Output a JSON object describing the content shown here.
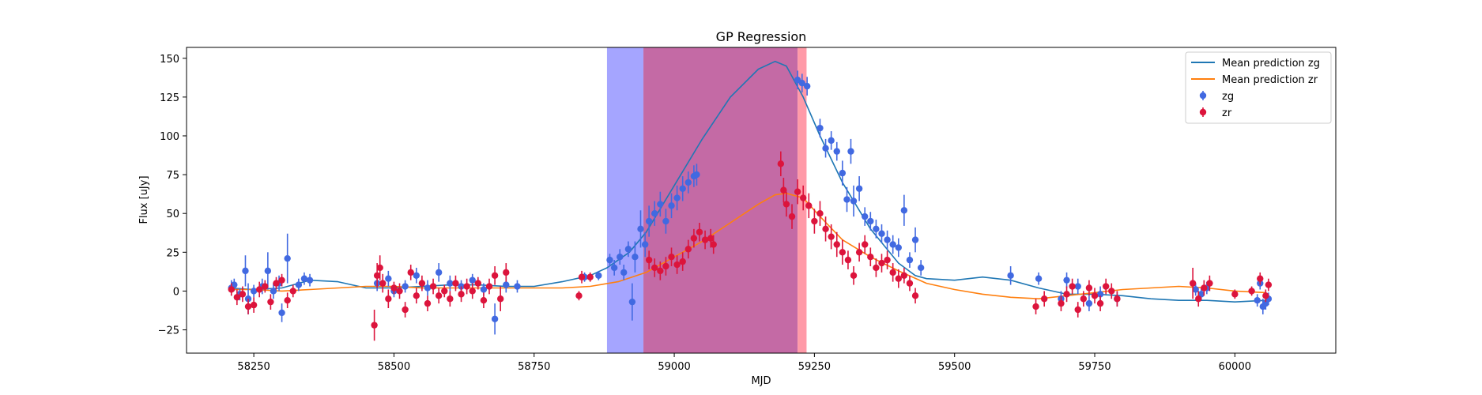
{
  "chart_data": {
    "type": "scatter",
    "title": "GP Regression",
    "xlabel": "MJD",
    "ylabel": "Flux [uJy]",
    "xlim": [
      58130,
      60180
    ],
    "ylim": [
      -40,
      157
    ],
    "xticks": [
      58250,
      58500,
      58750,
      59000,
      59250,
      59500,
      59750,
      60000
    ],
    "yticks": [
      -25,
      0,
      25,
      50,
      75,
      100,
      125,
      150
    ],
    "grid": false,
    "legend_position": "top-right",
    "shaded_regions": [
      {
        "x0": 58880,
        "x1": 58945,
        "color": "#a5a5ff",
        "label": ""
      },
      {
        "x0": 58945,
        "x1": 59220,
        "color": "#c46aa5",
        "label": ""
      },
      {
        "x0": 59220,
        "x1": 59236,
        "color": "#ff9aa8",
        "label": ""
      }
    ],
    "series": [
      {
        "name": "Mean prediction zg",
        "kind": "line",
        "color": "#1f77b4",
        "x": [
          58205,
          58250,
          58300,
          58350,
          58400,
          58450,
          58500,
          58550,
          58600,
          58650,
          58700,
          58750,
          58800,
          58850,
          58880,
          58920,
          58950,
          59000,
          59050,
          59100,
          59150,
          59180,
          59200,
          59230,
          59260,
          59300,
          59350,
          59400,
          59430,
          59450,
          59500,
          59550,
          59600,
          59650,
          59700,
          59750,
          59800,
          59850,
          59900,
          59950,
          60000,
          60055
        ],
        "y": [
          2,
          1,
          2,
          7,
          6,
          2,
          2,
          3,
          4,
          4,
          3,
          3,
          6,
          10,
          15,
          25,
          38,
          68,
          98,
          125,
          143,
          148,
          145,
          125,
          100,
          70,
          40,
          18,
          10,
          8,
          7,
          9,
          7,
          2,
          -2,
          -2,
          -3,
          -5,
          -6,
          -6,
          -7,
          -6
        ]
      },
      {
        "name": "Mean prediction zr",
        "kind": "line",
        "color": "#ff7f0e",
        "x": [
          58205,
          58250,
          58300,
          58350,
          58400,
          58450,
          58500,
          58550,
          58600,
          58650,
          58700,
          58750,
          58800,
          58850,
          58900,
          58950,
          59000,
          59050,
          59100,
          59150,
          59180,
          59200,
          59230,
          59260,
          59300,
          59350,
          59400,
          59450,
          59500,
          59550,
          59600,
          59650,
          59700,
          59750,
          59800,
          59850,
          59900,
          59950,
          60000,
          60055
        ],
        "y": [
          1,
          1,
          0,
          1,
          2,
          3,
          3,
          2,
          2,
          2,
          2,
          2,
          2,
          3,
          6,
          12,
          22,
          32,
          44,
          56,
          62,
          63,
          60,
          48,
          33,
          22,
          13,
          5,
          1,
          -2,
          -4,
          -5,
          -3,
          -1,
          1,
          2,
          3,
          2,
          0,
          -1
        ]
      },
      {
        "name": "zg",
        "kind": "errorbar",
        "color": "#4169e1",
        "points": [
          [
            58210,
            2,
            5
          ],
          [
            58215,
            4,
            4
          ],
          [
            58225,
            -2,
            4
          ],
          [
            58235,
            13,
            10
          ],
          [
            58240,
            -5,
            10
          ],
          [
            58250,
            0,
            4
          ],
          [
            58265,
            3,
            5
          ],
          [
            58275,
            13,
            12
          ],
          [
            58285,
            0,
            5
          ],
          [
            58295,
            5,
            5
          ],
          [
            58300,
            -14,
            6
          ],
          [
            58310,
            21,
            16
          ],
          [
            58330,
            4,
            4
          ],
          [
            58340,
            8,
            4
          ],
          [
            58350,
            7,
            4
          ],
          [
            58470,
            5,
            5
          ],
          [
            58490,
            8,
            5
          ],
          [
            58500,
            0,
            4
          ],
          [
            58520,
            3,
            4
          ],
          [
            58540,
            10,
            5
          ],
          [
            58560,
            2,
            5
          ],
          [
            58580,
            12,
            6
          ],
          [
            58600,
            5,
            5
          ],
          [
            58620,
            3,
            4
          ],
          [
            58640,
            7,
            4
          ],
          [
            58660,
            1,
            4
          ],
          [
            58680,
            -18,
            10
          ],
          [
            58700,
            4,
            5
          ],
          [
            58720,
            3,
            4
          ],
          [
            58840,
            9,
            3
          ],
          [
            58865,
            10,
            3
          ],
          [
            58885,
            20,
            4
          ],
          [
            58893,
            15,
            5
          ],
          [
            58903,
            22,
            5
          ],
          [
            58910,
            12,
            5
          ],
          [
            58918,
            27,
            5
          ],
          [
            58925,
            -7,
            12
          ],
          [
            58930,
            22,
            10
          ],
          [
            58940,
            40,
            12
          ],
          [
            58948,
            30,
            8
          ],
          [
            58955,
            45,
            10
          ],
          [
            58965,
            50,
            8
          ],
          [
            58975,
            56,
            8
          ],
          [
            58985,
            45,
            8
          ],
          [
            58995,
            55,
            8
          ],
          [
            59005,
            60,
            8
          ],
          [
            59015,
            66,
            8
          ],
          [
            59025,
            70,
            7
          ],
          [
            59035,
            74,
            7
          ],
          [
            59040,
            75,
            7
          ],
          [
            59220,
            136,
            6
          ],
          [
            59228,
            134,
            6
          ],
          [
            59237,
            132,
            6
          ],
          [
            59260,
            105,
            6
          ],
          [
            59270,
            92,
            6
          ],
          [
            59280,
            97,
            6
          ],
          [
            59290,
            90,
            6
          ],
          [
            59300,
            76,
            8
          ],
          [
            59308,
            59,
            8
          ],
          [
            59315,
            90,
            8
          ],
          [
            59320,
            58,
            10
          ],
          [
            59330,
            66,
            8
          ],
          [
            59340,
            48,
            6
          ],
          [
            59350,
            45,
            6
          ],
          [
            59360,
            40,
            6
          ],
          [
            59370,
            37,
            6
          ],
          [
            59380,
            33,
            6
          ],
          [
            59390,
            30,
            6
          ],
          [
            59400,
            28,
            6
          ],
          [
            59410,
            52,
            10
          ],
          [
            59420,
            20,
            5
          ],
          [
            59430,
            33,
            8
          ],
          [
            59440,
            15,
            5
          ],
          [
            59600,
            10,
            6
          ],
          [
            59650,
            8,
            4
          ],
          [
            59690,
            -5,
            5
          ],
          [
            59700,
            7,
            5
          ],
          [
            59720,
            3,
            5
          ],
          [
            59740,
            -8,
            5
          ],
          [
            59760,
            -2,
            5
          ],
          [
            59790,
            -5,
            5
          ],
          [
            59930,
            1,
            4
          ],
          [
            59940,
            -2,
            4
          ],
          [
            59950,
            2,
            4
          ],
          [
            60040,
            -6,
            4
          ],
          [
            60045,
            5,
            4
          ],
          [
            60050,
            -10,
            5
          ],
          [
            60055,
            -8,
            4
          ],
          [
            60060,
            -5,
            4
          ]
        ]
      },
      {
        "name": "zr",
        "kind": "errorbar",
        "color": "#dc143c",
        "points": [
          [
            58210,
            1,
            4
          ],
          [
            58220,
            -4,
            5
          ],
          [
            58230,
            -2,
            5
          ],
          [
            58240,
            -10,
            5
          ],
          [
            58250,
            -9,
            5
          ],
          [
            58260,
            1,
            5
          ],
          [
            58270,
            3,
            4
          ],
          [
            58280,
            -7,
            5
          ],
          [
            58290,
            5,
            4
          ],
          [
            58300,
            7,
            4
          ],
          [
            58310,
            -6,
            5
          ],
          [
            58320,
            0,
            4
          ],
          [
            58465,
            -22,
            10
          ],
          [
            58470,
            10,
            8
          ],
          [
            58475,
            15,
            8
          ],
          [
            58480,
            5,
            6
          ],
          [
            58490,
            -5,
            6
          ],
          [
            58500,
            2,
            4
          ],
          [
            58510,
            0,
            5
          ],
          [
            58520,
            -12,
            5
          ],
          [
            58530,
            12,
            5
          ],
          [
            58540,
            -3,
            5
          ],
          [
            58550,
            5,
            5
          ],
          [
            58560,
            -8,
            5
          ],
          [
            58570,
            3,
            5
          ],
          [
            58580,
            -3,
            5
          ],
          [
            58590,
            0,
            4
          ],
          [
            58600,
            -5,
            5
          ],
          [
            58610,
            5,
            5
          ],
          [
            58620,
            -2,
            5
          ],
          [
            58630,
            3,
            5
          ],
          [
            58640,
            0,
            5
          ],
          [
            58650,
            5,
            4
          ],
          [
            58660,
            -6,
            5
          ],
          [
            58670,
            3,
            5
          ],
          [
            58680,
            10,
            6
          ],
          [
            58690,
            -5,
            8
          ],
          [
            58700,
            12,
            6
          ],
          [
            58830,
            -3,
            3
          ],
          [
            58835,
            9,
            4
          ],
          [
            58850,
            9,
            3
          ],
          [
            58955,
            20,
            6
          ],
          [
            58965,
            15,
            6
          ],
          [
            58975,
            13,
            6
          ],
          [
            58985,
            16,
            6
          ],
          [
            58995,
            22,
            6
          ],
          [
            59005,
            17,
            6
          ],
          [
            59015,
            19,
            6
          ],
          [
            59025,
            27,
            6
          ],
          [
            59035,
            34,
            6
          ],
          [
            59045,
            38,
            6
          ],
          [
            59055,
            33,
            6
          ],
          [
            59065,
            34,
            6
          ],
          [
            59070,
            30,
            6
          ],
          [
            59190,
            82,
            8
          ],
          [
            59195,
            65,
            8
          ],
          [
            59200,
            56,
            8
          ],
          [
            59210,
            48,
            8
          ],
          [
            59220,
            64,
            8
          ],
          [
            59230,
            60,
            8
          ],
          [
            59240,
            55,
            8
          ],
          [
            59250,
            45,
            8
          ],
          [
            59260,
            50,
            8
          ],
          [
            59270,
            40,
            8
          ],
          [
            59280,
            35,
            8
          ],
          [
            59290,
            30,
            8
          ],
          [
            59300,
            25,
            8
          ],
          [
            59310,
            20,
            6
          ],
          [
            59320,
            10,
            6
          ],
          [
            59330,
            25,
            6
          ],
          [
            59340,
            30,
            6
          ],
          [
            59350,
            22,
            6
          ],
          [
            59360,
            15,
            6
          ],
          [
            59370,
            18,
            6
          ],
          [
            59380,
            20,
            6
          ],
          [
            59390,
            12,
            6
          ],
          [
            59400,
            8,
            6
          ],
          [
            59410,
            10,
            5
          ],
          [
            59420,
            5,
            5
          ],
          [
            59430,
            -3,
            5
          ],
          [
            59645,
            -10,
            5
          ],
          [
            59660,
            -5,
            5
          ],
          [
            59690,
            -8,
            5
          ],
          [
            59700,
            -2,
            5
          ],
          [
            59710,
            3,
            5
          ],
          [
            59720,
            -12,
            5
          ],
          [
            59730,
            -5,
            5
          ],
          [
            59740,
            2,
            5
          ],
          [
            59750,
            -3,
            5
          ],
          [
            59760,
            -8,
            5
          ],
          [
            59770,
            3,
            5
          ],
          [
            59780,
            0,
            5
          ],
          [
            59790,
            -5,
            5
          ],
          [
            59925,
            5,
            10
          ],
          [
            59935,
            -5,
            5
          ],
          [
            59945,
            2,
            5
          ],
          [
            59955,
            5,
            5
          ],
          [
            60000,
            -2,
            3
          ],
          [
            60030,
            0,
            3
          ],
          [
            60045,
            8,
            4
          ],
          [
            60055,
            -3,
            4
          ],
          [
            60060,
            4,
            4
          ]
        ]
      }
    ]
  }
}
